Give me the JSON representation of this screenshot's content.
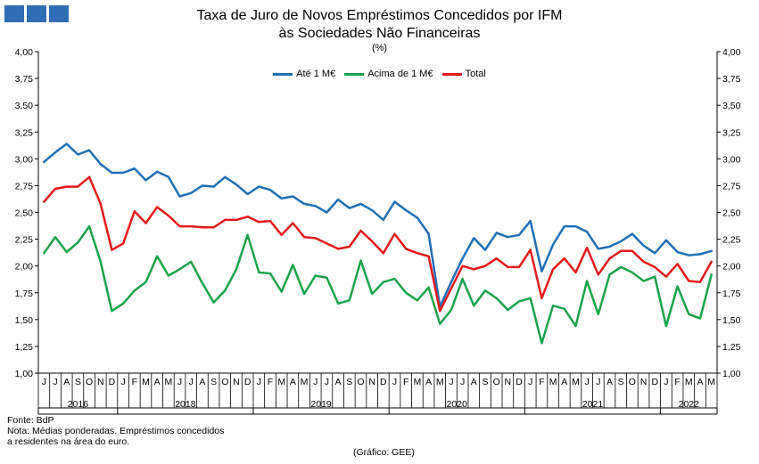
{
  "title_line1": "Taxa de Juro de Novos Empréstimos Concedidos por IFM",
  "title_line2": "às Sociedades Não Financeiras",
  "unit": "(%)",
  "source": "Fonte: BdP",
  "note_line1": "Nota: Médias ponderadas. Empréstimos concedidos",
  "note_line2": "a residentes na área do euro.",
  "credit": "(Gráfico: GEE)",
  "chart_data": {
    "type": "line",
    "title": "Taxa de Juro de Novos Empréstimos Concedidos por IFM às Sociedades Não Financeiras",
    "ylabel": "(%)",
    "ylim": [
      1.0,
      4.0
    ],
    "ytick_step": 0.25,
    "yticks": [
      "1,00",
      "1,25",
      "1,50",
      "1,75",
      "2,00",
      "2,25",
      "2,50",
      "2,75",
      "3,00",
      "3,25",
      "3,50",
      "3,75",
      "4,00"
    ],
    "grid": false,
    "legend_position": "top-center",
    "month_labels": [
      "J",
      "J",
      "A",
      "S",
      "O",
      "N",
      "D",
      "J",
      "F",
      "M",
      "A",
      "M",
      "J",
      "J",
      "A",
      "S",
      "O",
      "N",
      "D",
      "J",
      "F",
      "M",
      "A",
      "M",
      "J",
      "J",
      "A",
      "S",
      "O",
      "N",
      "D",
      "J",
      "F",
      "M",
      "A",
      "M",
      "J",
      "J",
      "A",
      "S",
      "O",
      "N",
      "D",
      "J",
      "F",
      "M",
      "A",
      "M",
      "J",
      "J",
      "A",
      "S",
      "O",
      "N",
      "D",
      "J",
      "F",
      "M",
      "A",
      "M"
    ],
    "years": [
      {
        "label": "2016",
        "first": 0,
        "last": 6
      },
      {
        "label": "2018",
        "first": 7,
        "last": 18
      },
      {
        "label": "2019",
        "first": 19,
        "last": 30
      },
      {
        "label": "2020",
        "first": 31,
        "last": 42
      },
      {
        "label": "2021",
        "first": 43,
        "last": 54
      },
      {
        "label": "2022",
        "first": 55,
        "last": 59
      }
    ],
    "series": [
      {
        "name": "Até 1 M€",
        "color": "#1f6fb5",
        "values": [
          2.97,
          3.06,
          3.14,
          3.04,
          3.08,
          2.95,
          2.87,
          2.87,
          2.91,
          2.8,
          2.88,
          2.83,
          2.65,
          2.68,
          2.75,
          2.74,
          2.83,
          2.76,
          2.67,
          2.74,
          2.71,
          2.63,
          2.65,
          2.58,
          2.56,
          2.5,
          2.62,
          2.54,
          2.58,
          2.52,
          2.43,
          2.6,
          2.52,
          2.45,
          2.3,
          1.62,
          1.85,
          2.07,
          2.26,
          2.15,
          2.31,
          2.27,
          2.29,
          2.42,
          1.95,
          2.2,
          2.37,
          2.37,
          2.32,
          2.16,
          2.18,
          2.23,
          2.3,
          2.19,
          2.12,
          2.24,
          2.13,
          2.1,
          2.11,
          2.14
        ]
      },
      {
        "name": "Acima de 1 M€",
        "color": "#1aa34a",
        "values": [
          2.12,
          2.27,
          2.13,
          2.22,
          2.37,
          2.04,
          1.58,
          1.65,
          1.77,
          1.85,
          2.09,
          1.91,
          1.97,
          2.04,
          1.84,
          1.66,
          1.77,
          1.97,
          2.29,
          1.94,
          1.93,
          1.76,
          2.01,
          1.74,
          1.91,
          1.89,
          1.65,
          1.68,
          2.05,
          1.74,
          1.85,
          1.88,
          1.75,
          1.68,
          1.8,
          1.46,
          1.59,
          1.88,
          1.63,
          1.77,
          1.7,
          1.59,
          1.67,
          1.7,
          1.28,
          1.63,
          1.6,
          1.44,
          1.86,
          1.55,
          1.92,
          1.99,
          1.94,
          1.86,
          1.9,
          1.44,
          1.81,
          1.55,
          1.51,
          1.92
        ]
      },
      {
        "name": "Total",
        "color": "#e31a1c",
        "values": [
          2.6,
          2.72,
          2.74,
          2.74,
          2.83,
          2.58,
          2.15,
          2.21,
          2.51,
          2.4,
          2.55,
          2.47,
          2.37,
          2.37,
          2.36,
          2.36,
          2.43,
          2.43,
          2.46,
          2.41,
          2.42,
          2.29,
          2.4,
          2.27,
          2.26,
          2.21,
          2.16,
          2.18,
          2.33,
          2.23,
          2.12,
          2.3,
          2.16,
          2.12,
          2.09,
          1.58,
          1.79,
          2.0,
          1.97,
          2.0,
          2.07,
          1.99,
          1.99,
          2.15,
          1.7,
          1.97,
          2.07,
          1.94,
          2.17,
          1.92,
          2.07,
          2.14,
          2.14,
          2.04,
          1.99,
          1.9,
          2.02,
          1.86,
          1.85,
          2.04
        ]
      }
    ]
  }
}
